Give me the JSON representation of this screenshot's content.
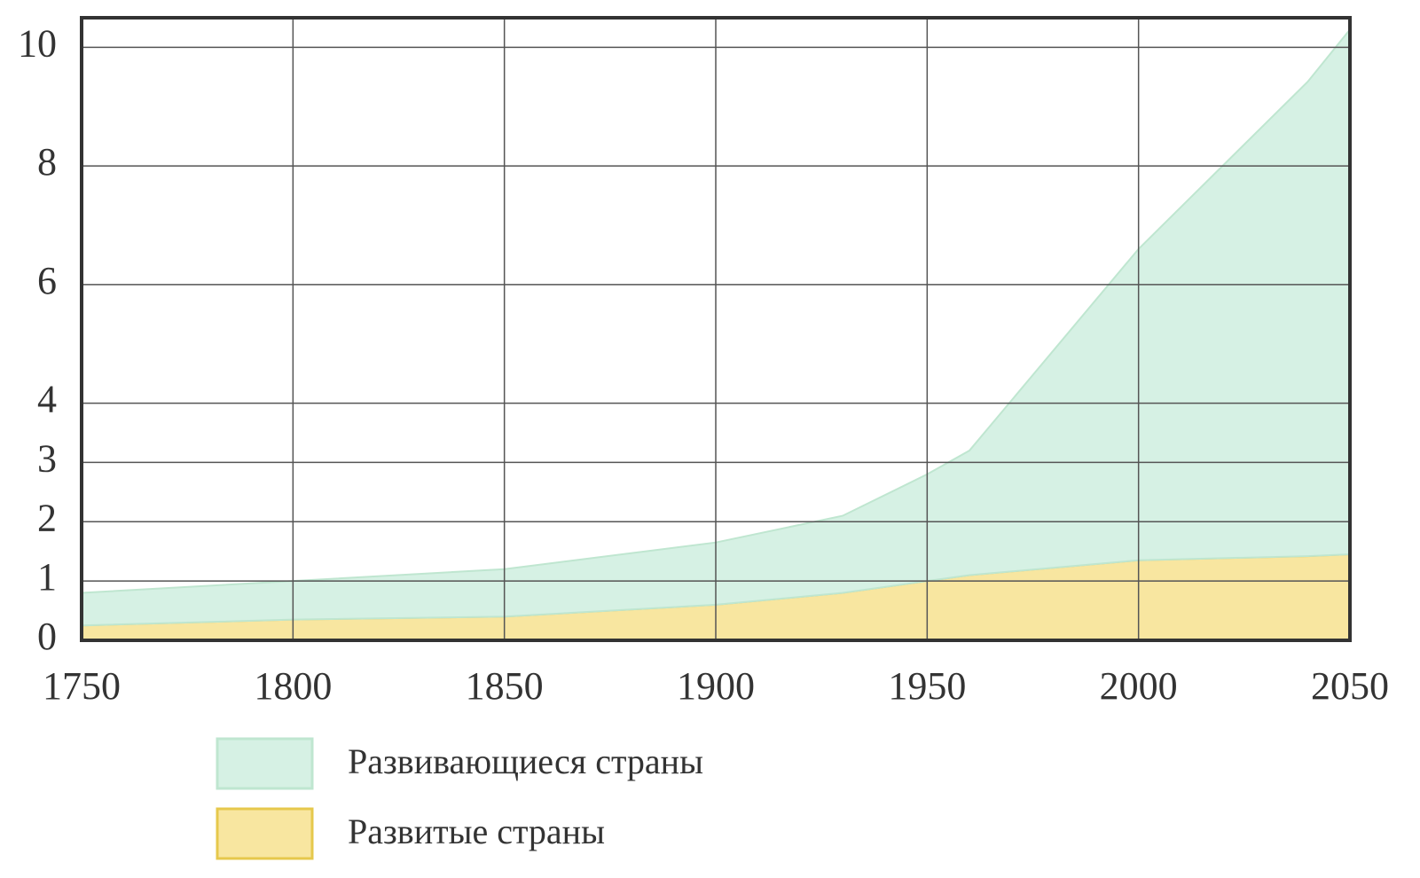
{
  "chart_data": {
    "type": "area",
    "stacked": true,
    "x": [
      1750,
      1800,
      1850,
      1900,
      1930,
      1950,
      1960,
      2000,
      2040,
      2050
    ],
    "series": [
      {
        "name": "Развивающиеся страны",
        "color": "#d6f1e4",
        "edge": "#bfe6d0",
        "values": [
          0.55,
          0.65,
          0.8,
          1.05,
          1.3,
          1.8,
          2.1,
          5.25,
          8.0,
          8.85
        ]
      },
      {
        "name": "Развитые страны",
        "color": "#f8e6a0",
        "edge": "#e6c84c",
        "values": [
          0.25,
          0.35,
          0.4,
          0.6,
          0.8,
          1.0,
          1.1,
          1.35,
          1.42,
          1.45
        ]
      }
    ],
    "xlim": [
      1750,
      2050
    ],
    "xticks": [
      1750,
      1800,
      1850,
      1900,
      1950,
      2000,
      2050
    ],
    "ylim": [
      0,
      10.5
    ],
    "yticks": [
      0,
      1,
      2,
      3,
      4,
      6,
      8,
      10
    ],
    "grid": true
  }
}
